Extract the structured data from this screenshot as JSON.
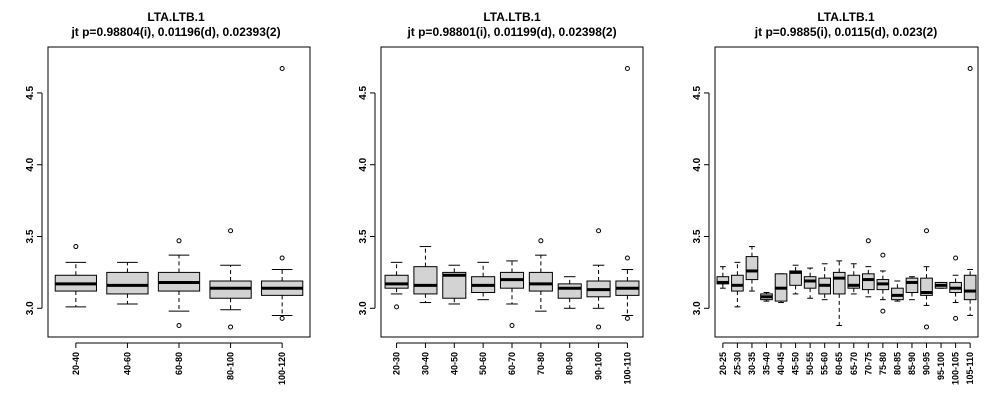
{
  "colors": {
    "box_fill": "#d3d3d3",
    "line": "#000000",
    "background": "#ffffff"
  },
  "chart_data": [
    {
      "type": "box",
      "title": "LTA.LTB.1",
      "subtitle": "jt p=0.98804(i), 0.01196(d), 0.02393(2)",
      "ylim": [
        2.8,
        4.82
      ],
      "yticks": [
        "3.0",
        "3.5",
        "4.0",
        "4.5"
      ],
      "grid": false,
      "categories": [
        "20-40",
        "40-60",
        "60-80",
        "80-100",
        "100-120"
      ],
      "boxes": [
        {
          "min": 3.01,
          "q1": 3.12,
          "median": 3.17,
          "q3": 3.23,
          "max": 3.32,
          "outliers": [
            3.43
          ]
        },
        {
          "min": 3.03,
          "q1": 3.1,
          "median": 3.16,
          "q3": 3.25,
          "max": 3.32,
          "outliers": []
        },
        {
          "min": 2.98,
          "q1": 3.12,
          "median": 3.18,
          "q3": 3.25,
          "max": 3.37,
          "outliers": [
            3.47,
            2.88
          ]
        },
        {
          "min": 2.99,
          "q1": 3.07,
          "median": 3.14,
          "q3": 3.19,
          "max": 3.3,
          "outliers": [
            3.54,
            2.87
          ]
        },
        {
          "min": 2.95,
          "q1": 3.09,
          "median": 3.14,
          "q3": 3.19,
          "max": 3.27,
          "outliers": [
            4.67,
            3.35,
            2.93
          ]
        }
      ]
    },
    {
      "type": "box",
      "title": "LTA.LTB.1",
      "subtitle": "jt p=0.98801(i), 0.01199(d), 0.02398(2)",
      "ylim": [
        2.8,
        4.82
      ],
      "yticks": [
        "3.0",
        "3.5",
        "4.0",
        "4.5"
      ],
      "grid": false,
      "categories": [
        "20-30",
        "30-40",
        "40-50",
        "50-60",
        "60-70",
        "70-80",
        "80-90",
        "90-100",
        "100-110"
      ],
      "boxes": [
        {
          "min": 3.1,
          "q1": 3.14,
          "median": 3.17,
          "q3": 3.23,
          "max": 3.32,
          "outliers": [
            3.01
          ]
        },
        {
          "min": 3.04,
          "q1": 3.1,
          "median": 3.16,
          "q3": 3.29,
          "max": 3.43,
          "outliers": []
        },
        {
          "min": 3.03,
          "q1": 3.07,
          "median": 3.23,
          "q3": 3.25,
          "max": 3.3,
          "outliers": []
        },
        {
          "min": 3.06,
          "q1": 3.11,
          "median": 3.16,
          "q3": 3.22,
          "max": 3.32,
          "outliers": []
        },
        {
          "min": 3.03,
          "q1": 3.14,
          "median": 3.2,
          "q3": 3.25,
          "max": 3.33,
          "outliers": [
            2.88
          ]
        },
        {
          "min": 2.98,
          "q1": 3.12,
          "median": 3.17,
          "q3": 3.25,
          "max": 3.37,
          "outliers": [
            3.47
          ]
        },
        {
          "min": 3.0,
          "q1": 3.07,
          "median": 3.14,
          "q3": 3.17,
          "max": 3.22,
          "outliers": []
        },
        {
          "min": 3.0,
          "q1": 3.08,
          "median": 3.13,
          "q3": 3.19,
          "max": 3.3,
          "outliers": [
            3.54,
            2.87
          ]
        },
        {
          "min": 2.95,
          "q1": 3.09,
          "median": 3.14,
          "q3": 3.19,
          "max": 3.27,
          "outliers": [
            4.67,
            3.35,
            2.93
          ]
        }
      ]
    },
    {
      "type": "box",
      "title": "LTA.LTB.1",
      "subtitle": "jt p=0.9885(i), 0.0115(d), 0.023(2)",
      "ylim": [
        2.8,
        4.82
      ],
      "yticks": [
        "3.0",
        "3.5",
        "4.0",
        "4.5"
      ],
      "grid": false,
      "categories": [
        "20-25",
        "25-30",
        "30-35",
        "35-40",
        "40-45",
        "45-50",
        "50-55",
        "55-60",
        "60-65",
        "65-70",
        "70-75",
        "75-80",
        "80-85",
        "85-90",
        "90-95",
        "95-100",
        "100-105",
        "105-110"
      ],
      "boxes": [
        {
          "min": 3.14,
          "q1": 3.17,
          "median": 3.18,
          "q3": 3.22,
          "max": 3.29,
          "outliers": []
        },
        {
          "min": 3.01,
          "q1": 3.12,
          "median": 3.16,
          "q3": 3.23,
          "max": 3.32,
          "outliers": []
        },
        {
          "min": 3.12,
          "q1": 3.2,
          "median": 3.26,
          "q3": 3.36,
          "max": 3.43,
          "outliers": []
        },
        {
          "min": 3.05,
          "q1": 3.06,
          "median": 3.08,
          "q3": 3.1,
          "max": 3.11,
          "outliers": []
        },
        {
          "min": 3.04,
          "q1": 3.05,
          "median": 3.14,
          "q3": 3.24,
          "max": 3.24,
          "outliers": []
        },
        {
          "min": 3.1,
          "q1": 3.16,
          "median": 3.25,
          "q3": 3.26,
          "max": 3.3,
          "outliers": []
        },
        {
          "min": 3.07,
          "q1": 3.14,
          "median": 3.19,
          "q3": 3.22,
          "max": 3.28,
          "outliers": []
        },
        {
          "min": 3.06,
          "q1": 3.1,
          "median": 3.16,
          "q3": 3.21,
          "max": 3.31,
          "outliers": []
        },
        {
          "min": 2.88,
          "q1": 3.1,
          "median": 3.21,
          "q3": 3.25,
          "max": 3.33,
          "outliers": []
        },
        {
          "min": 3.1,
          "q1": 3.14,
          "median": 3.16,
          "q3": 3.23,
          "max": 3.31,
          "outliers": []
        },
        {
          "min": 3.08,
          "q1": 3.13,
          "median": 3.2,
          "q3": 3.24,
          "max": 3.29,
          "outliers": [
            3.47
          ]
        },
        {
          "min": 3.06,
          "q1": 3.13,
          "median": 3.17,
          "q3": 3.2,
          "max": 3.26,
          "outliers": [
            2.98,
            3.37
          ]
        },
        {
          "min": 3.05,
          "q1": 3.06,
          "median": 3.09,
          "q3": 3.14,
          "max": 3.19,
          "outliers": []
        },
        {
          "min": 3.06,
          "q1": 3.11,
          "median": 3.18,
          "q3": 3.21,
          "max": 3.22,
          "outliers": []
        },
        {
          "min": 3.02,
          "q1": 3.09,
          "median": 3.11,
          "q3": 3.21,
          "max": 3.29,
          "outliers": [
            3.54,
            2.87
          ]
        },
        {
          "min": 3.14,
          "q1": 3.14,
          "median": 3.16,
          "q3": 3.18,
          "max": 3.18,
          "outliers": []
        },
        {
          "min": 3.04,
          "q1": 3.11,
          "median": 3.14,
          "q3": 3.18,
          "max": 3.23,
          "outliers": [
            3.35,
            2.93
          ]
        },
        {
          "min": 2.95,
          "q1": 3.06,
          "median": 3.12,
          "q3": 3.23,
          "max": 3.27,
          "outliers": [
            4.67
          ]
        }
      ]
    }
  ]
}
